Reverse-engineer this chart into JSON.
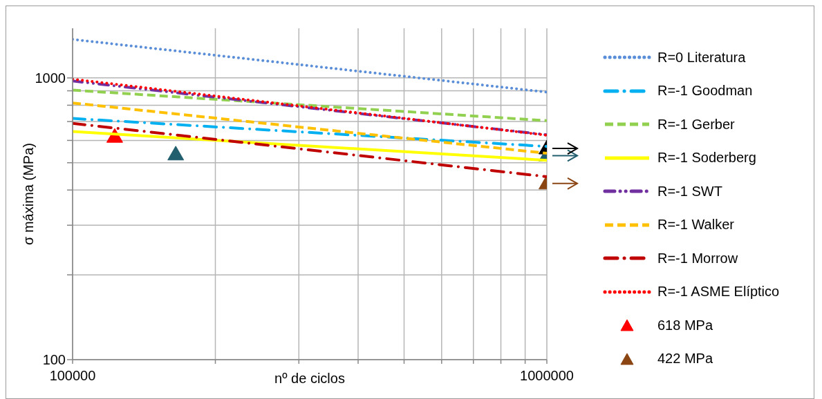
{
  "chart_data": {
    "type": "line",
    "xlabel": "nº de ciclos",
    "ylabel": "σ máxima (MPa)",
    "log": "xy",
    "grid": true,
    "legend": "right",
    "marker": "none",
    "xlim": [
      100000,
      1000000
    ],
    "xticks": [
      100000,
      {
        "value": 200000,
        "label": null
      },
      {
        "value": 300000,
        "label": null
      },
      {
        "value": 400000,
        "label": null
      },
      {
        "value": 500000,
        "label": null
      },
      {
        "value": 600000,
        "label": null
      },
      {
        "value": 700000,
        "label": null
      },
      {
        "value": 800000,
        "label": null
      },
      {
        "value": 900000,
        "label": null
      },
      1000000
    ],
    "ylim": [
      100,
      1500
    ],
    "yticks": [
      100,
      {
        "value": 200,
        "label": null
      },
      {
        "value": 300,
        "label": null
      },
      {
        "value": 400,
        "label": null
      },
      {
        "value": 500,
        "label": null
      },
      {
        "value": 600,
        "label": null
      },
      {
        "value": 700,
        "label": null
      },
      {
        "value": 800,
        "label": null
      },
      {
        "value": 900,
        "label": null
      },
      1000
    ],
    "series": [
      {
        "name": "R=0 Literatura",
        "line_style": "dotted",
        "color": "#5b8ed8",
        "x": [
          100000,
          1000000
        ],
        "values": [
          1370,
          890
        ]
      },
      {
        "name": "R=-1 Goodman",
        "line_style": "dashdot",
        "color": "#00b0f0",
        "x": [
          100000,
          1000000
        ],
        "values": [
          718,
          571
        ]
      },
      {
        "name": "R=-1 Gerber",
        "line_style": "dashed",
        "color": "#92d050",
        "x": [
          100000,
          1000000
        ],
        "values": [
          905,
          705
        ]
      },
      {
        "name": "R=-1 Soderberg",
        "line_style": "solid",
        "color": "#ffff00",
        "x": [
          100000,
          1000000
        ],
        "values": [
          645,
          510
        ]
      },
      {
        "name": "R=-1 SWT",
        "line_style": "dashdotdot",
        "color": "#7030a0",
        "x": [
          100000,
          1000000
        ],
        "values": [
          975,
          628
        ]
      },
      {
        "name": "R=-1 Walker",
        "line_style": "dashed",
        "color": "#ffc000",
        "x": [
          100000,
          1000000
        ],
        "values": [
          815,
          540
        ]
      },
      {
        "name": "R=-1 Morrow",
        "line_style": "dashdot",
        "color": "#c00000",
        "x": [
          100000,
          1000000
        ],
        "values": [
          690,
          446
        ]
      },
      {
        "name": "R=-1 ASME Elíptico",
        "line_style": "dotted",
        "color": "#ff0000",
        "x": [
          100000,
          1000000
        ],
        "values": [
          990,
          626
        ]
      },
      {
        "name": "618 MPa",
        "type": "scatter",
        "marker": "triangle",
        "color": "#ff0000",
        "x": [
          122700
        ],
        "values": [
          618
        ]
      },
      {
        "type": "scatter",
        "marker": "triangle",
        "color": "#215e6e",
        "x": [
          165000,
          1000000
        ],
        "values": [
          535,
          530
        ]
      },
      {
        "type": "scatter",
        "marker": "triangle",
        "color": "#000000",
        "x": [
          1000000
        ],
        "values": [
          562
        ]
      },
      {
        "name": "422 MPa",
        "type": "scatter",
        "marker": "triangle",
        "color": "#8b4513",
        "x": [
          1000000
        ],
        "values": [
          422
        ]
      }
    ]
  }
}
